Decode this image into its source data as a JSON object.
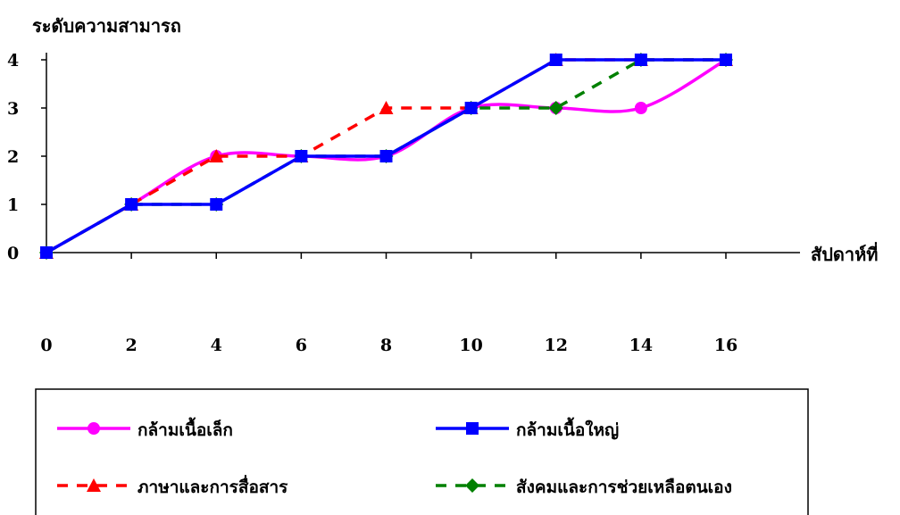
{
  "chart_data": {
    "type": "line",
    "ylabel": "ระดับความสามารถ",
    "xlabel": "สัปดาห์ที่",
    "x": [
      0,
      2,
      4,
      6,
      8,
      10,
      12,
      14,
      16
    ],
    "xlim": [
      0,
      16
    ],
    "ylim": [
      0,
      4
    ],
    "y_ticks": [
      0,
      1,
      2,
      3,
      4
    ],
    "grid": false,
    "legend_position": "bottom",
    "series": [
      {
        "name": "กล้ามเนื้อเล็ก",
        "color": "#FF00FF",
        "marker": "circle",
        "line_style": "solid-smooth",
        "values": [
          0,
          1,
          2,
          2,
          2,
          3,
          3,
          3,
          4
        ]
      },
      {
        "name": "กล้ามเนื้อใหญ่",
        "color": "#0000FF",
        "marker": "square",
        "line_style": "solid",
        "values": [
          0,
          1,
          1,
          2,
          2,
          3,
          4,
          4,
          4
        ]
      },
      {
        "name": "ภาษาและการสื่อสาร",
        "color": "#FF0000",
        "marker": "triangle",
        "line_style": "dashed",
        "values": [
          0,
          1,
          2,
          2,
          3,
          3,
          4,
          4,
          4
        ]
      },
      {
        "name": "สังคมและการช่วยเหลือตนเอง",
        "color": "#008000",
        "marker": "diamond",
        "line_style": "dashed",
        "values": [
          0,
          1,
          1,
          2,
          2,
          3,
          3,
          4,
          4
        ]
      }
    ]
  }
}
